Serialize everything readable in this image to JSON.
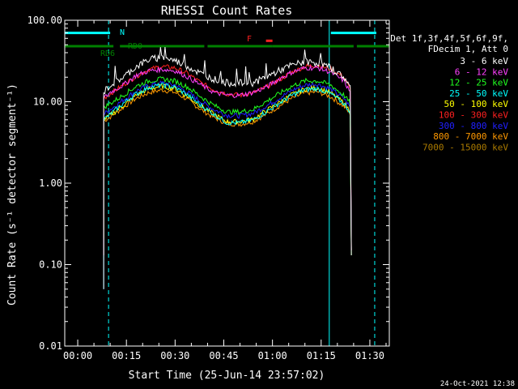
{
  "chart_data": {
    "type": "line",
    "title": "RHESSI Count Rates",
    "xlabel": "Start Time (25-Jun-14 23:57:02)",
    "ylabel": "Count Rate (s⁻¹ detector segment⁻¹)",
    "yscale": "log",
    "ylim": [
      0.01,
      100
    ],
    "xlim_min": [
      -4,
      96
    ],
    "x_ticks": [
      {
        "v": 0,
        "label": "00:00"
      },
      {
        "v": 15,
        "label": "00:15"
      },
      {
        "v": 30,
        "label": "00:30"
      },
      {
        "v": 45,
        "label": "00:45"
      },
      {
        "v": 60,
        "label": "01:00"
      },
      {
        "v": 75,
        "label": "01:15"
      },
      {
        "v": 90,
        "label": "01:30"
      }
    ],
    "y_ticks": [
      {
        "v": 100,
        "label": "100.00"
      },
      {
        "v": 10,
        "label": "10.00"
      },
      {
        "v": 1,
        "label": "1.00"
      },
      {
        "v": 0.1,
        "label": "0.10"
      },
      {
        "v": 0.01,
        "label": "0.01"
      }
    ],
    "legend_header": [
      "Det 1f,3f,4f,5f,6f,9f,",
      "FDecim 1, Att 0"
    ],
    "legend_position": "right",
    "series": [
      {
        "name": "3 - 6 keV",
        "color": "#ffffff",
        "x": [
          8,
          10,
          14,
          18,
          22,
          26,
          30,
          34,
          38,
          42,
          46,
          50,
          54,
          58,
          62,
          66,
          70,
          74,
          78,
          82,
          84
        ],
        "y": [
          13,
          16,
          20,
          27,
          33,
          35,
          32,
          27,
          22,
          19,
          17,
          17,
          17,
          20,
          24,
          28,
          31,
          30,
          26,
          20,
          15
        ]
      },
      {
        "name": "6 - 12 keV",
        "color": "#ff40ff",
        "x": [
          8,
          10,
          14,
          18,
          22,
          26,
          30,
          34,
          38,
          42,
          46,
          50,
          54,
          58,
          62,
          66,
          70,
          74,
          78,
          82,
          84
        ],
        "y": [
          11,
          13,
          16,
          21,
          24,
          25,
          24,
          20,
          16,
          13,
          12,
          12,
          13,
          15,
          19,
          23,
          26,
          26,
          23,
          18,
          13
        ]
      },
      {
        "name": "12 - 25 keV",
        "color": "#20ff20",
        "x": [
          8,
          10,
          14,
          18,
          22,
          26,
          30,
          34,
          38,
          42,
          46,
          50,
          54,
          58,
          62,
          66,
          70,
          74,
          78,
          82,
          84
        ],
        "y": [
          8.5,
          9.5,
          12,
          15.5,
          18,
          19,
          18,
          15,
          11.5,
          9,
          7.5,
          7.5,
          8,
          10,
          12.5,
          15.5,
          18,
          18,
          16,
          12,
          9.5
        ]
      },
      {
        "name": "25 - 50 keV",
        "color": "#00ffff",
        "x": [
          8,
          10,
          14,
          18,
          22,
          26,
          30,
          34,
          38,
          42,
          46,
          50,
          54,
          58,
          62,
          66,
          70,
          74,
          78,
          82,
          84
        ],
        "y": [
          6,
          7,
          9.5,
          12.5,
          15,
          16,
          15,
          12,
          9,
          7,
          5.5,
          5.5,
          6,
          7.5,
          9.5,
          12,
          14,
          14.5,
          12.5,
          9.5,
          7.5
        ]
      },
      {
        "name": "50 - 100 keV",
        "color": "#ffff00",
        "x": [
          8,
          10,
          14,
          18,
          22,
          26,
          30,
          34,
          38,
          42,
          46,
          50,
          54,
          58,
          62,
          66,
          70,
          74,
          78,
          82,
          84
        ],
        "y": [
          6,
          6.8,
          9,
          12,
          14.5,
          15.5,
          14.5,
          11.5,
          8.8,
          7,
          5.7,
          5.7,
          6.1,
          7.7,
          9.7,
          12.2,
          14.3,
          14.8,
          12.7,
          9.7,
          7.6
        ]
      },
      {
        "name": "100 - 300 keV",
        "color": "#ff2020",
        "x": [
          8,
          10,
          14,
          18,
          22,
          26,
          30,
          34,
          38,
          42,
          46,
          50,
          54,
          58,
          62,
          66,
          70,
          74,
          78,
          82,
          84
        ],
        "y": [
          11,
          12.5,
          16,
          20.5,
          25,
          27,
          26,
          22,
          17,
          14,
          12.5,
          12,
          12.8,
          15,
          18.5,
          23,
          27,
          28,
          25,
          20,
          14
        ]
      },
      {
        "name": "300 - 800 keV",
        "color": "#2020ff",
        "x": [
          8,
          10,
          14,
          18,
          22,
          26,
          30,
          34,
          38,
          42,
          46,
          50,
          54,
          58,
          62,
          66,
          70,
          74,
          78,
          82,
          84
        ],
        "y": [
          7,
          8,
          10.5,
          13.5,
          16,
          17,
          16,
          13,
          10,
          8,
          6.8,
          6.7,
          7.2,
          8.8,
          11,
          13.8,
          16,
          16.5,
          14.2,
          11,
          8.5
        ]
      },
      {
        "name": "800 - 7000 keV",
        "color": "#ff9900",
        "x": [
          8,
          10,
          14,
          18,
          22,
          26,
          30,
          34,
          38,
          42,
          46,
          50,
          54,
          58,
          62,
          66,
          70,
          74,
          78,
          82,
          84
        ],
        "y": [
          5.8,
          6.5,
          8.5,
          11,
          13,
          14,
          13,
          10.5,
          8,
          6.4,
          5.4,
          5.3,
          5.7,
          7,
          8.8,
          11,
          12.8,
          13.2,
          11.5,
          8.8,
          7
        ]
      },
      {
        "name": "7000 - 15000 keV",
        "color": "#aa7a00",
        "x": [],
        "y": []
      }
    ],
    "flag_bars": [
      {
        "label": "N",
        "color": "#00ffff",
        "y": 70,
        "segments": [
          [
            -4,
            10
          ],
          [
            78,
            92
          ]
        ]
      },
      {
        "label": "RD6",
        "color": "#008000",
        "y": 48,
        "segments": [
          [
            -4,
            11
          ],
          [
            13,
            39
          ],
          [
            40,
            60
          ],
          [
            60,
            85
          ],
          [
            86,
            96
          ]
        ]
      },
      {
        "label": "RD0",
        "color": "#008000",
        "y": 48,
        "segments": []
      },
      {
        "label": "F",
        "color": "#ff2020",
        "y": 56,
        "segments": [
          [
            58,
            60
          ]
        ]
      }
    ],
    "vertical_markers": [
      {
        "x": -4,
        "color": "#00ffff",
        "style": "solid"
      },
      {
        "x": 9.5,
        "color": "#00ffff",
        "style": "dashed"
      },
      {
        "x": 77.5,
        "color": "#00ffff",
        "style": "solid"
      },
      {
        "x": 91.5,
        "color": "#00ffff",
        "style": "dashed"
      }
    ],
    "timestamp": "24-Oct-2021 12:38"
  }
}
